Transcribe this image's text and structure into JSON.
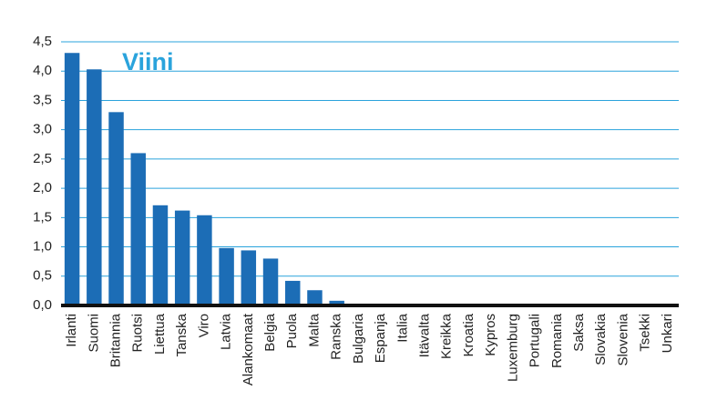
{
  "chart_data": {
    "type": "bar",
    "title": "Viini",
    "categories": [
      "Irlanti",
      "Suomi",
      "Britannia",
      "Ruotsi",
      "Liettua",
      "Tanska",
      "Viro",
      "Latvia",
      "Alankomaat",
      "Belgia",
      "Puola",
      "Malta",
      "Ranska",
      "Bulgaria",
      "Espanja",
      "Italia",
      "Itävalta",
      "Kreikka",
      "Kroatia",
      "Kypros",
      "Luxemburg",
      "Portugali",
      "Romania",
      "Saksa",
      "Slovakia",
      "Slovenia",
      "Tsekki",
      "Unkari"
    ],
    "values": [
      4.31,
      4.03,
      3.3,
      2.6,
      1.71,
      1.62,
      1.54,
      0.98,
      0.94,
      0.8,
      0.42,
      0.26,
      0.08,
      0,
      0,
      0,
      0,
      0,
      0,
      0,
      0,
      0,
      0,
      0,
      0,
      0,
      0,
      0
    ],
    "color": "#1c6db6",
    "ylim": [
      0,
      4.5
    ],
    "yticks": [
      {
        "value": 0,
        "label": "0,0"
      },
      {
        "value": 0.5,
        "label": "0,5"
      },
      {
        "value": 1,
        "label": "1,0"
      },
      {
        "value": 1.5,
        "label": "1,5"
      },
      {
        "value": 2,
        "label": "2,0"
      },
      {
        "value": 2.5,
        "label": "2,5"
      },
      {
        "value": 3,
        "label": "3,0"
      },
      {
        "value": 3.5,
        "label": "3,5"
      },
      {
        "value": 4,
        "label": "4,0"
      },
      {
        "value": 4.5,
        "label": "4,5"
      }
    ],
    "grid": true
  }
}
